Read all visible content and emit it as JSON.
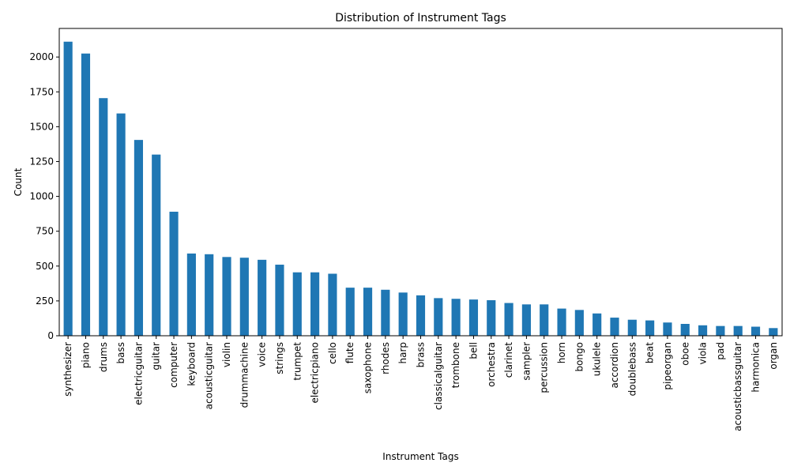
{
  "chart_data": {
    "type": "bar",
    "title": "Distribution of Instrument Tags",
    "xlabel": "Instrument Tags",
    "ylabel": "Count",
    "ylim": [
      0,
      2205
    ],
    "yticks": [
      0,
      250,
      500,
      750,
      1000,
      1250,
      1500,
      1750,
      2000
    ],
    "grid": false,
    "bar_color": "#1f77b4",
    "categories": [
      "synthesizer",
      "piano",
      "drums",
      "bass",
      "electricguitar",
      "guitar",
      "computer",
      "keyboard",
      "acousticguitar",
      "violin",
      "drummachine",
      "voice",
      "strings",
      "trumpet",
      "electricpiano",
      "cello",
      "flute",
      "saxophone",
      "rhodes",
      "harp",
      "brass",
      "classicalguitar",
      "trombone",
      "bell",
      "orchestra",
      "clarinet",
      "sampler",
      "percussion",
      "horn",
      "bongo",
      "ukulele",
      "accordion",
      "doublebass",
      "beat",
      "pipeorgan",
      "oboe",
      "viola",
      "pad",
      "acousticbassguitar",
      "harmonica",
      "organ"
    ],
    "values": [
      2110,
      2025,
      1705,
      1595,
      1405,
      1300,
      890,
      590,
      585,
      565,
      560,
      545,
      510,
      455,
      455,
      445,
      345,
      345,
      330,
      310,
      290,
      270,
      265,
      260,
      255,
      235,
      225,
      225,
      195,
      185,
      160,
      130,
      115,
      110,
      95,
      85,
      75,
      70,
      70,
      65,
      55
    ]
  }
}
